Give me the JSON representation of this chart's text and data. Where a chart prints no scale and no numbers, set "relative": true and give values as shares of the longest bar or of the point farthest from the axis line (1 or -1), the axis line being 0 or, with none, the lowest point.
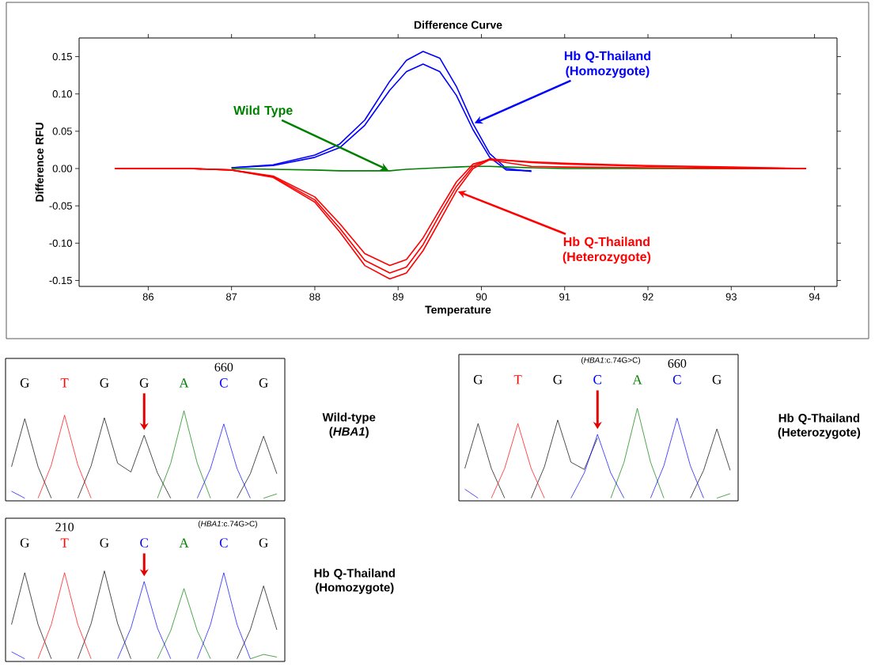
{
  "chart_data": [
    {
      "type": "line",
      "title": "Difference Curve",
      "xlabel": "Temperature",
      "ylabel": "Difference RFU",
      "x": [
        85.6,
        86.5,
        87,
        87.5,
        88,
        88.3,
        88.6,
        88.9,
        89.1,
        89.3,
        89.5,
        89.7,
        89.9,
        90.1,
        90.3,
        90.6,
        91,
        92,
        93,
        93.9
      ],
      "xlim": [
        85.17,
        94.27
      ],
      "ylim": [
        -0.158,
        0.175
      ],
      "xticks": [
        86,
        87,
        88,
        89,
        90,
        91,
        92,
        93,
        94
      ],
      "yticks": [
        {
          "value": 0.15,
          "label": "0.15"
        },
        {
          "value": 0.1,
          "label": "0.10"
        },
        {
          "value": 0.05,
          "label": "0.05"
        },
        {
          "value": 0,
          "label": "0.00"
        },
        {
          "value": -0.05,
          "label": "-0.05"
        },
        {
          "value": -0.1,
          "label": "-0.10"
        },
        {
          "value": -0.15,
          "label": "-0.15"
        }
      ],
      "series": [
        {
          "color": "#0000ff",
          "values": [
            null,
            null,
            0.001,
            0.005,
            0.018,
            0.033,
            0.065,
            0.117,
            0.145,
            0.157,
            0.148,
            0.11,
            0.06,
            0.02,
            0,
            -0.004,
            null,
            null,
            null,
            null
          ]
        },
        {
          "color": "#0000ff",
          "values": [
            null,
            null,
            0.001,
            0.004,
            0.015,
            0.028,
            0.058,
            0.105,
            0.13,
            0.14,
            0.13,
            0.098,
            0.052,
            0.015,
            -0.002,
            -0.003,
            null,
            null,
            null,
            null
          ]
        },
        {
          "color": "#008000",
          "values": [
            null,
            null,
            0,
            -0.001,
            -0.002,
            -0.003,
            -0.003,
            -0.003,
            -0.001,
            0,
            0.001,
            0.002,
            0.003,
            0.003,
            0.002,
            0.001,
            0,
            0,
            0,
            0
          ]
        },
        {
          "color": "#ff0000",
          "values": [
            0,
            0,
            -0.002,
            -0.012,
            -0.045,
            -0.085,
            -0.13,
            -0.148,
            -0.14,
            -0.11,
            -0.07,
            -0.03,
            0,
            0.012,
            0.011,
            0.009,
            0.007,
            0.004,
            0.002,
            0
          ]
        },
        {
          "color": "#ff0000",
          "values": [
            0,
            0,
            -0.002,
            -0.011,
            -0.042,
            -0.08,
            -0.123,
            -0.14,
            -0.132,
            -0.102,
            -0.062,
            -0.024,
            0.003,
            0.013,
            0.011,
            0.008,
            0.006,
            0.003,
            0.001,
            0
          ]
        },
        {
          "color": "#ff0000",
          "values": [
            0,
            0,
            -0.002,
            -0.01,
            -0.038,
            -0.074,
            -0.114,
            -0.13,
            -0.122,
            -0.093,
            -0.055,
            -0.018,
            0.006,
            0.012,
            0.008,
            0.003,
            0.002,
            0.001,
            0,
            0
          ]
        }
      ],
      "annotations": [
        {
          "text": "Wild Type",
          "x": 88.9,
          "y": -0.003
        },
        {
          "text": "Hb Q-Thailand (Homozygote)",
          "x": 89.9,
          "y": 0.06
        },
        {
          "text": "Hb Q-Thailand (Heterozygote)",
          "x": 89.7,
          "y": -0.03
        }
      ]
    },
    {
      "type": "line",
      "relative": true,
      "categories": [
        null,
        null,
        null,
        null,
        null,
        null,
        null,
        null,
        null,
        null,
        null,
        null,
        null,
        null,
        null,
        null,
        null,
        null,
        null,
        null,
        null
      ],
      "series": [
        {
          "color": "#000000",
          "values": [
            0.36,
            0.91,
            0.36,
            0,
            null,
            0,
            0.37,
            0.92,
            0.4,
            0.3,
            0.72,
            0.29,
            0,
            null,
            null,
            null,
            null,
            0,
            0.28,
            0.71,
            0.28
          ]
        },
        {
          "color": "#ff0000",
          "values": [
            null,
            null,
            0,
            0.38,
            0.95,
            0.38,
            0,
            null,
            null,
            null,
            null,
            null,
            null,
            null,
            null,
            null,
            null,
            null,
            null,
            null,
            null
          ]
        },
        {
          "color": "#008000",
          "values": [
            null,
            null,
            null,
            null,
            null,
            null,
            null,
            null,
            null,
            null,
            null,
            0,
            0.4,
            1,
            0.4,
            0,
            null,
            null,
            null,
            0,
            0.05
          ]
        },
        {
          "color": "#0000ff",
          "values": [
            0.08,
            0,
            null,
            null,
            null,
            null,
            null,
            null,
            null,
            null,
            null,
            null,
            null,
            null,
            0,
            0.34,
            0.85,
            0.34,
            0,
            null,
            null
          ]
        }
      ],
      "annotations": [
        "Wild-type (*HBA1*)",
        "G",
        "T",
        "G",
        "G",
        "A",
        "C",
        "G",
        "660"
      ]
    },
    {
      "type": "line",
      "relative": true,
      "categories": [
        null,
        null,
        null,
        null,
        null,
        null,
        null,
        null,
        null,
        null,
        null,
        null,
        null,
        null,
        null,
        null,
        null,
        null,
        null,
        null,
        null
      ],
      "series": [
        {
          "color": "#000000",
          "values": [
            0.33,
            0.83,
            0.33,
            0,
            null,
            0,
            0.35,
            0.87,
            0.4,
            0.32,
            0.67,
            null,
            null,
            null,
            null,
            null,
            null,
            0,
            0.31,
            0.77,
            0.31
          ]
        },
        {
          "color": "#ff0000",
          "values": [
            null,
            null,
            0,
            0.33,
            0.83,
            0.33,
            0,
            null,
            null,
            null,
            null,
            null,
            null,
            null,
            null,
            null,
            null,
            null,
            null,
            null,
            null
          ]
        },
        {
          "color": "#008000",
          "values": [
            null,
            null,
            null,
            null,
            null,
            null,
            null,
            null,
            null,
            null,
            null,
            0,
            0.4,
            1,
            0.4,
            0,
            null,
            null,
            null,
            0,
            0.05
          ]
        },
        {
          "color": "#0000ff",
          "values": [
            0.1,
            0,
            null,
            null,
            null,
            null,
            null,
            null,
            0,
            0.28,
            0.71,
            0.28,
            0,
            null,
            0,
            0.36,
            0.89,
            0.36,
            0,
            null,
            null
          ]
        }
      ],
      "annotations": [
        "Hb Q-Thailand (Heterozygote)",
        "G",
        "T",
        "G",
        "C",
        "A",
        "C",
        "G",
        "(*HBA1*:c.74G>C)",
        "660"
      ]
    },
    {
      "type": "line",
      "relative": true,
      "categories": [
        null,
        null,
        null,
        null,
        null,
        null,
        null,
        null,
        null,
        null,
        null,
        null,
        null,
        null,
        null,
        null,
        null,
        null,
        null,
        null,
        null
      ],
      "series": [
        {
          "color": "#000000",
          "values": [
            0.39,
            0.98,
            0.39,
            0,
            null,
            0,
            0.4,
            1,
            0.4,
            0,
            null,
            null,
            null,
            null,
            null,
            null,
            null,
            0,
            0.33,
            0.83,
            0.33
          ]
        },
        {
          "color": "#ff0000",
          "values": [
            null,
            null,
            0,
            0.39,
            0.98,
            0.39,
            0,
            null,
            null,
            null,
            null,
            null,
            null,
            null,
            null,
            null,
            null,
            null,
            null,
            null,
            null
          ]
        },
        {
          "color": "#008000",
          "values": [
            null,
            null,
            null,
            null,
            null,
            null,
            null,
            null,
            null,
            null,
            null,
            0,
            0.32,
            0.8,
            0.32,
            0,
            null,
            null,
            0,
            0.05,
            0.02
          ]
        },
        {
          "color": "#0000ff",
          "values": [
            0.08,
            0,
            null,
            null,
            null,
            null,
            null,
            null,
            0,
            0.35,
            0.88,
            0.35,
            0,
            null,
            0,
            0.39,
            0.98,
            0.39,
            0,
            null,
            null
          ]
        }
      ],
      "annotations": [
        "Hb Q-Thailand (Homozygote)",
        "G",
        "T",
        "G",
        "C",
        "A",
        "C",
        "G",
        "210",
        "(*HBA1*:c.74G>C)"
      ]
    }
  ]
}
